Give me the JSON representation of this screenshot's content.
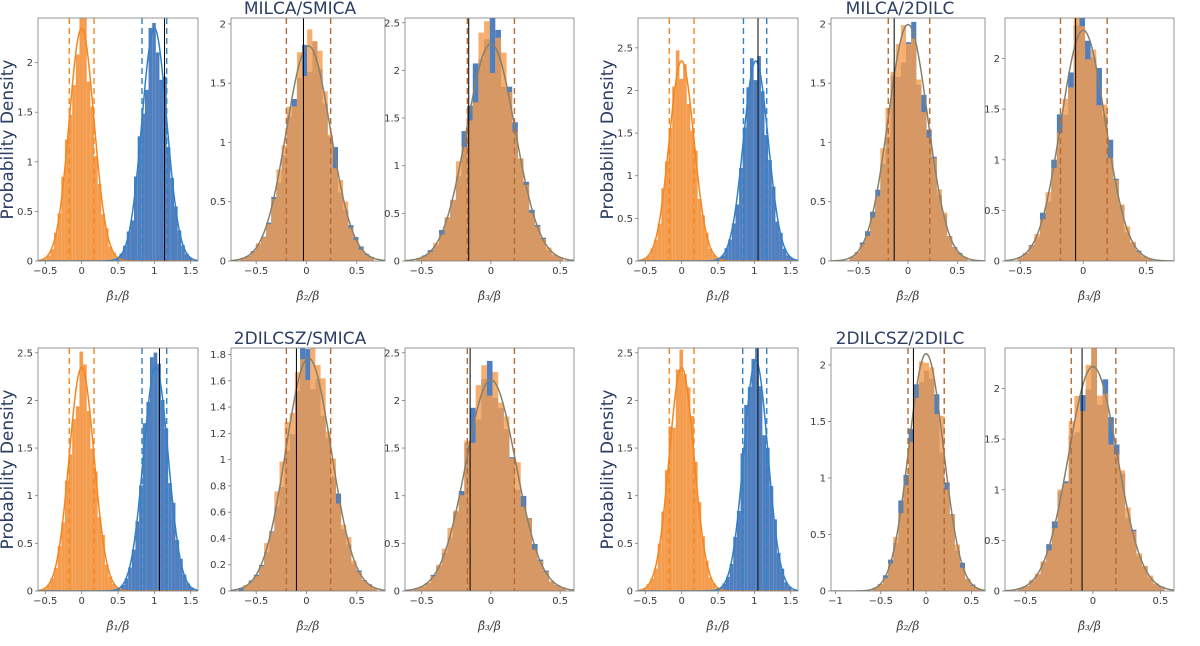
{
  "colors": {
    "orange": "#f59d4f",
    "blue": "#4f7fbf",
    "overlap": "#c97a52",
    "orange_dash": "#f5861f",
    "blue_dash": "#2f82c8",
    "overlap_dash": "#b9682f",
    "fit": "#86806c",
    "truth": "#000000"
  },
  "chart_data": [
    {
      "title": "MILCA/SMICA",
      "ylabel": "Probability Density",
      "panels": [
        {
          "type": "hist-pair",
          "xlabel": "β̂₁/β",
          "xlim": [
            -0.6,
            1.6
          ],
          "ylim": [
            0,
            2.45
          ],
          "xticks": [
            -0.5,
            0,
            0.5,
            1,
            1.5
          ],
          "xtick_labels": [
            "−0.5",
            "0",
            "0.5",
            "1",
            "1.5"
          ],
          "yticks": [
            0,
            0.5,
            1,
            1.5,
            2
          ],
          "ytick_labels": [
            "0",
            "0.5",
            "1",
            "1.5",
            "2"
          ],
          "orange": {
            "mean": 0.0,
            "sd": 0.17,
            "dash": [
              -0.17,
              0.17
            ]
          },
          "blue": {
            "mean": 1.0,
            "sd": 0.17,
            "dash": [
              0.83,
              1.17
            ]
          },
          "truth": 1.14
        },
        {
          "type": "hist-overlap",
          "xlabel": "β̂₂/β",
          "xlim": [
            -0.75,
            0.78
          ],
          "ylim": [
            0,
            2.05
          ],
          "xticks": [
            -0.5,
            0,
            0.5
          ],
          "xtick_labels": [
            "−0.5",
            "0",
            "0.5"
          ],
          "yticks": [
            0,
            0.5,
            1,
            1.5,
            2
          ],
          "ytick_labels": [
            "0",
            "0.5",
            "1",
            "1.5",
            "2"
          ],
          "mean": 0.02,
          "sd": 0.22,
          "dash": [
            -0.2,
            0.24
          ],
          "truth": -0.03
        },
        {
          "type": "hist-overlap",
          "xlabel": "β̂₃/β",
          "xlim": [
            -0.62,
            0.6
          ],
          "ylim": [
            0,
            2.55
          ],
          "xticks": [
            -0.5,
            0,
            0.5
          ],
          "xtick_labels": [
            "−0.5",
            "0",
            "0.5"
          ],
          "yticks": [
            0,
            0.5,
            1,
            1.5,
            2,
            2.5
          ],
          "ytick_labels": [
            "0",
            "0.5",
            "1",
            "1.5",
            "2",
            "2.5"
          ],
          "mean": 0.0,
          "sd": 0.175,
          "dash": [
            -0.17,
            0.17
          ],
          "truth": -0.16
        }
      ]
    },
    {
      "title": "MILCA/2DILC",
      "ylabel": "Probability Density",
      "panels": [
        {
          "type": "hist-pair",
          "xlabel": "β̂₁/β",
          "xlim": [
            -0.6,
            1.6
          ],
          "ylim": [
            0,
            2.85
          ],
          "xticks": [
            -0.5,
            0,
            0.5,
            1,
            1.5
          ],
          "xtick_labels": [
            "−0.5",
            "0",
            "0.5",
            "1",
            "1.5"
          ],
          "yticks": [
            0,
            0.5,
            1,
            1.5,
            2,
            2.5
          ],
          "ytick_labels": [
            "0",
            "0.5",
            "1",
            "1.5",
            "2",
            "2.5"
          ],
          "orange": {
            "mean": 0.0,
            "sd": 0.17,
            "dash": [
              -0.17,
              0.17
            ]
          },
          "blue": {
            "mean": 1.02,
            "sd": 0.17,
            "dash": [
              0.85,
              1.17
            ]
          },
          "truth": 1.05
        },
        {
          "type": "hist-overlap",
          "xlabel": "β̂₂/β",
          "xlim": [
            -0.78,
            0.78
          ],
          "ylim": [
            0,
            2.05
          ],
          "xticks": [
            -0.5,
            0,
            0.5
          ],
          "xtick_labels": [
            "−0.5",
            "0",
            "0.5"
          ],
          "yticks": [
            0,
            0.5,
            1,
            1.5,
            2
          ],
          "ytick_labels": [
            "0",
            "0.5",
            "1",
            "1.5",
            "2"
          ],
          "mean": 0.0,
          "sd": 0.2,
          "dash": [
            -0.2,
            0.22
          ],
          "truth": -0.14
        },
        {
          "type": "hist-overlap",
          "xlabel": "β̂₃/β",
          "xlim": [
            -0.62,
            0.72
          ],
          "ylim": [
            0,
            2.4
          ],
          "xticks": [
            -0.5,
            0,
            0.5
          ],
          "xtick_labels": [
            "−0.5",
            "0",
            "0.5"
          ],
          "yticks": [
            0,
            0.5,
            1,
            1.5,
            2
          ],
          "ytick_labels": [
            "0",
            "0.5",
            "1",
            "1.5",
            "2"
          ],
          "mean": 0.0,
          "sd": 0.175,
          "dash": [
            -0.18,
            0.19
          ],
          "truth": -0.06
        }
      ]
    },
    {
      "title": "2DILCSZ/SMICA",
      "ylabel": "Probability Density",
      "panels": [
        {
          "type": "hist-pair",
          "xlabel": "β̂₁/β",
          "xlim": [
            -0.6,
            1.6
          ],
          "ylim": [
            0,
            2.55
          ],
          "xticks": [
            -0.5,
            0,
            0.5,
            1,
            1.5
          ],
          "xtick_labels": [
            "−0.5",
            "0",
            "0.5",
            "1",
            "1.5"
          ],
          "yticks": [
            0,
            0.5,
            1,
            1.5,
            2,
            2.5
          ],
          "ytick_labels": [
            "0",
            "0.5",
            "1",
            "1.5",
            "2",
            "2.5"
          ],
          "orange": {
            "mean": 0.0,
            "sd": 0.17,
            "dash": [
              -0.17,
              0.17
            ]
          },
          "blue": {
            "mean": 1.02,
            "sd": 0.17,
            "dash": [
              0.83,
              1.17
            ]
          },
          "truth": 1.07
        },
        {
          "type": "hist-overlap",
          "xlabel": "β̂₂/β",
          "xlim": [
            -0.75,
            0.78
          ],
          "ylim": [
            0,
            1.85
          ],
          "xticks": [
            -0.5,
            0,
            0.5
          ],
          "xtick_labels": [
            "−0.5",
            "0",
            "0.5"
          ],
          "yticks": [
            0,
            0.2,
            0.4,
            0.6,
            0.8,
            1,
            1.2,
            1.4,
            1.6,
            1.8
          ],
          "ytick_labels": [
            "0",
            "0.2",
            "0.4",
            "0.6",
            "0.8",
            "1",
            "1.2",
            "1.4",
            "1.6",
            "1.8"
          ],
          "mean": 0.02,
          "sd": 0.225,
          "dash": [
            -0.2,
            0.24
          ],
          "truth": -0.1
        },
        {
          "type": "hist-overlap",
          "xlabel": "β̂₃/β",
          "xlim": [
            -0.62,
            0.6
          ],
          "ylim": [
            0,
            2.55
          ],
          "xticks": [
            -0.5,
            0,
            0.5
          ],
          "xtick_labels": [
            "−0.5",
            "0",
            "0.5"
          ],
          "yticks": [
            0,
            0.5,
            1,
            1.5,
            2,
            2.5
          ],
          "ytick_labels": [
            "0",
            "0.5",
            "1",
            "1.5",
            "2",
            "2.5"
          ],
          "mean": 0.0,
          "sd": 0.18,
          "dash": [
            -0.17,
            0.17
          ],
          "truth": -0.15
        }
      ]
    },
    {
      "title": "2DILCSZ/2DILC",
      "ylabel": "Probability Density",
      "panels": [
        {
          "type": "hist-pair",
          "xlabel": "β̂₁/β",
          "xlim": [
            -0.6,
            1.6
          ],
          "ylim": [
            0,
            2.55
          ],
          "xticks": [
            -0.5,
            0,
            0.5,
            1,
            1.5
          ],
          "xtick_labels": [
            "−0.5",
            "0",
            "0.5",
            "1",
            "1.5"
          ],
          "yticks": [
            0,
            0.5,
            1,
            1.5,
            2,
            2.5
          ],
          "ytick_labels": [
            "0",
            "0.5",
            "1",
            "1.5",
            "2",
            "2.5"
          ],
          "orange": {
            "mean": 0.0,
            "sd": 0.17,
            "dash": [
              -0.17,
              0.17
            ]
          },
          "blue": {
            "mean": 1.02,
            "sd": 0.165,
            "dash": [
              0.84,
              1.17
            ]
          },
          "truth": 1.05
        },
        {
          "type": "hist-overlap",
          "xlabel": "β̂₂/β",
          "xlim": [
            -1.05,
            0.65
          ],
          "ylim": [
            0,
            2.15
          ],
          "xticks": [
            -1,
            -0.5,
            0,
            0.5
          ],
          "xtick_labels": [
            "−1",
            "−0.5",
            "0",
            "0.5"
          ],
          "yticks": [
            0,
            0.5,
            1,
            1.5,
            2
          ],
          "ytick_labels": [
            "0",
            "0.5",
            "1",
            "1.5",
            "2"
          ],
          "mean": 0.0,
          "sd": 0.19,
          "dash": [
            -0.2,
            0.2
          ],
          "truth": -0.14
        },
        {
          "type": "hist-overlap",
          "xlabel": "β̂₃/β",
          "xlim": [
            -0.65,
            0.6
          ],
          "ylim": [
            0,
            2.4
          ],
          "xticks": [
            -0.5,
            0,
            0.5
          ],
          "xtick_labels": [
            "−0.5",
            "0",
            "0.5"
          ],
          "yticks": [
            0,
            0.5,
            1,
            1.5,
            2
          ],
          "ytick_labels": [
            "0",
            "0.5",
            "1",
            "1.5",
            "2"
          ],
          "mean": 0.0,
          "sd": 0.18,
          "dash": [
            -0.16,
            0.17
          ],
          "truth": -0.08
        }
      ]
    }
  ]
}
